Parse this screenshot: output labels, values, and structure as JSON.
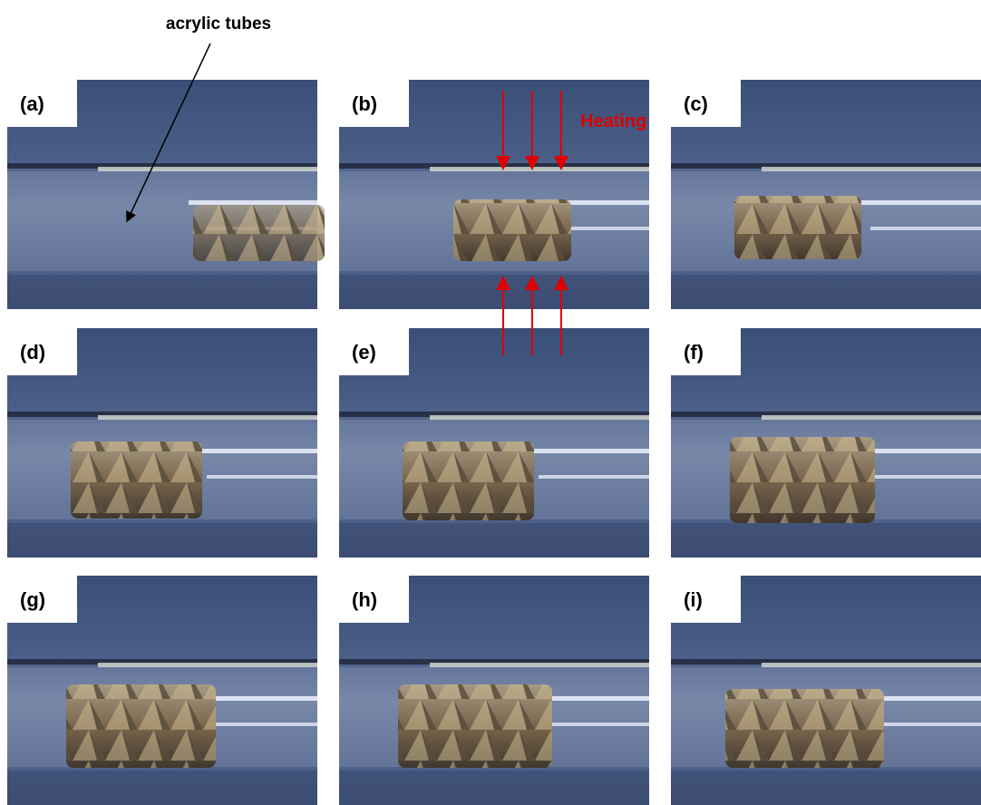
{
  "annotations": {
    "tube_label": "acrylic tubes",
    "heating_label": "Heating"
  },
  "panels": [
    {
      "label": "(a)"
    },
    {
      "label": "(b)"
    },
    {
      "label": "(c)"
    },
    {
      "label": "(d)"
    },
    {
      "label": "(e)"
    },
    {
      "label": "(f)"
    },
    {
      "label": "(g)"
    },
    {
      "label": "(h)"
    },
    {
      "label": "(i)"
    }
  ]
}
